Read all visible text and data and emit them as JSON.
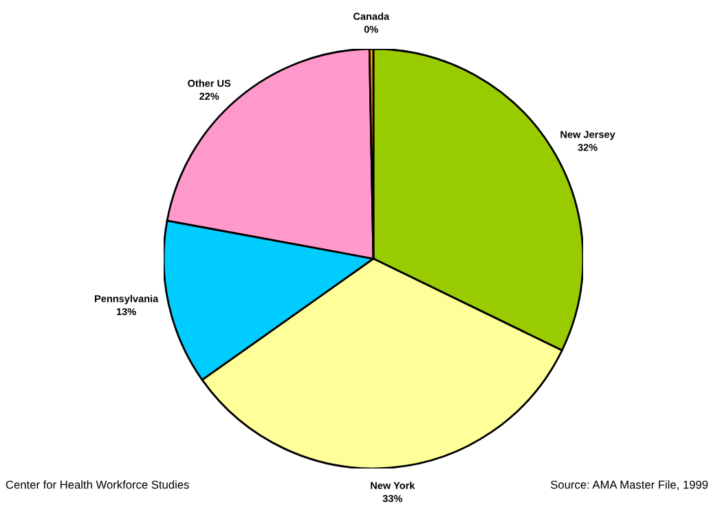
{
  "chart_data": {
    "type": "pie",
    "categories": [
      "New Jersey",
      "New York",
      "Pennsylvania",
      "Other US",
      "Canada"
    ],
    "values": [
      32.2,
      33.0,
      12.7,
      21.8,
      0.3
    ],
    "value_labels": [
      "32%",
      "33%",
      "13%",
      "22%",
      "0%"
    ],
    "colors": [
      "#99cc00",
      "#ffff99",
      "#00ccff",
      "#ff99cc",
      "#ff9900"
    ],
    "legend": false,
    "annotations": [
      "Center for Health Workforce Studies",
      "Source: AMA Master File, 1999"
    ]
  }
}
